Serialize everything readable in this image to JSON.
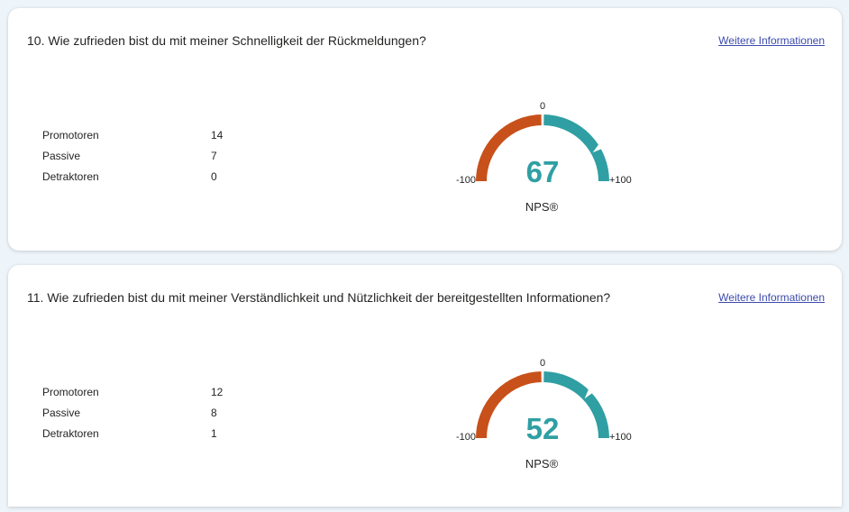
{
  "colors": {
    "detractor": "#c8501a",
    "promoter": "#2f9fa3",
    "score": "#2f9fa3",
    "link": "#3c4bad"
  },
  "questions": [
    {
      "title": "10. Wie zufrieden bist du mit meiner Schnelligkeit der Rückmeldungen?",
      "link": "Weitere Informationen",
      "stats": [
        {
          "label": "Promotoren",
          "value": "14"
        },
        {
          "label": "Passive",
          "value": "7"
        },
        {
          "label": "Detraktoren",
          "value": "0"
        }
      ],
      "gauge": {
        "score": 67,
        "score_text": "67",
        "caption": "NPS®",
        "min_label": "-100",
        "mid_label": "0",
        "max_label": "+100"
      }
    },
    {
      "title": "11. Wie zufrieden bist du mit meiner Verständlichkeit und Nützlichkeit der bereitgestellten Informationen?",
      "link": "Weitere Informationen",
      "stats": [
        {
          "label": "Promotoren",
          "value": "12"
        },
        {
          "label": "Passive",
          "value": "8"
        },
        {
          "label": "Detraktoren",
          "value": "1"
        }
      ],
      "gauge": {
        "score": 52,
        "score_text": "52",
        "caption": "NPS®",
        "min_label": "-100",
        "mid_label": "0",
        "max_label": "+100"
      }
    }
  ]
}
